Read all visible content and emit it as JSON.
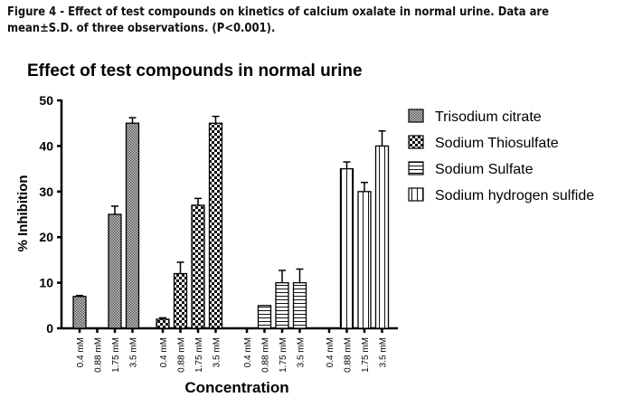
{
  "caption": {
    "line1": "Figure 4 - Effect of test compounds on kinetics of calcium oxalate in normal urine. Data are",
    "line2": "mean±S.D. of three observations. (P<0.001)."
  },
  "chart_data": {
    "type": "bar",
    "title": "Effect of test compounds in normal urine",
    "xlabel": "Concentration",
    "ylabel": "% Inhibition",
    "ylim": [
      0,
      50
    ],
    "yticks": [
      0,
      10,
      20,
      30,
      40,
      50
    ],
    "grid": false,
    "legend_position": "top-right",
    "categories": [
      "0.4 mM",
      "0.88 mM",
      "1.75 mM",
      "3.5 mM"
    ],
    "series": [
      {
        "name": "Trisodium citrate",
        "pattern": "fine-dots",
        "values": [
          7,
          0,
          25,
          45
        ],
        "errors": [
          0.2,
          0,
          1.8,
          1.2
        ]
      },
      {
        "name": "Sodium Thiosulfate",
        "pattern": "checker",
        "values": [
          2,
          12,
          27,
          45
        ],
        "errors": [
          0.3,
          2.5,
          1.5,
          1.5
        ]
      },
      {
        "name": "Sodium Sulfate",
        "pattern": "horizontal-lines",
        "values": [
          0,
          5,
          10,
          10
        ],
        "errors": [
          0,
          0,
          2.7,
          3
        ]
      },
      {
        "name": "Sodium hydrogen sulfide",
        "pattern": "vertical-lines",
        "values": [
          0,
          35,
          30,
          40
        ],
        "errors": [
          0,
          1.5,
          2,
          3.3
        ]
      }
    ]
  }
}
